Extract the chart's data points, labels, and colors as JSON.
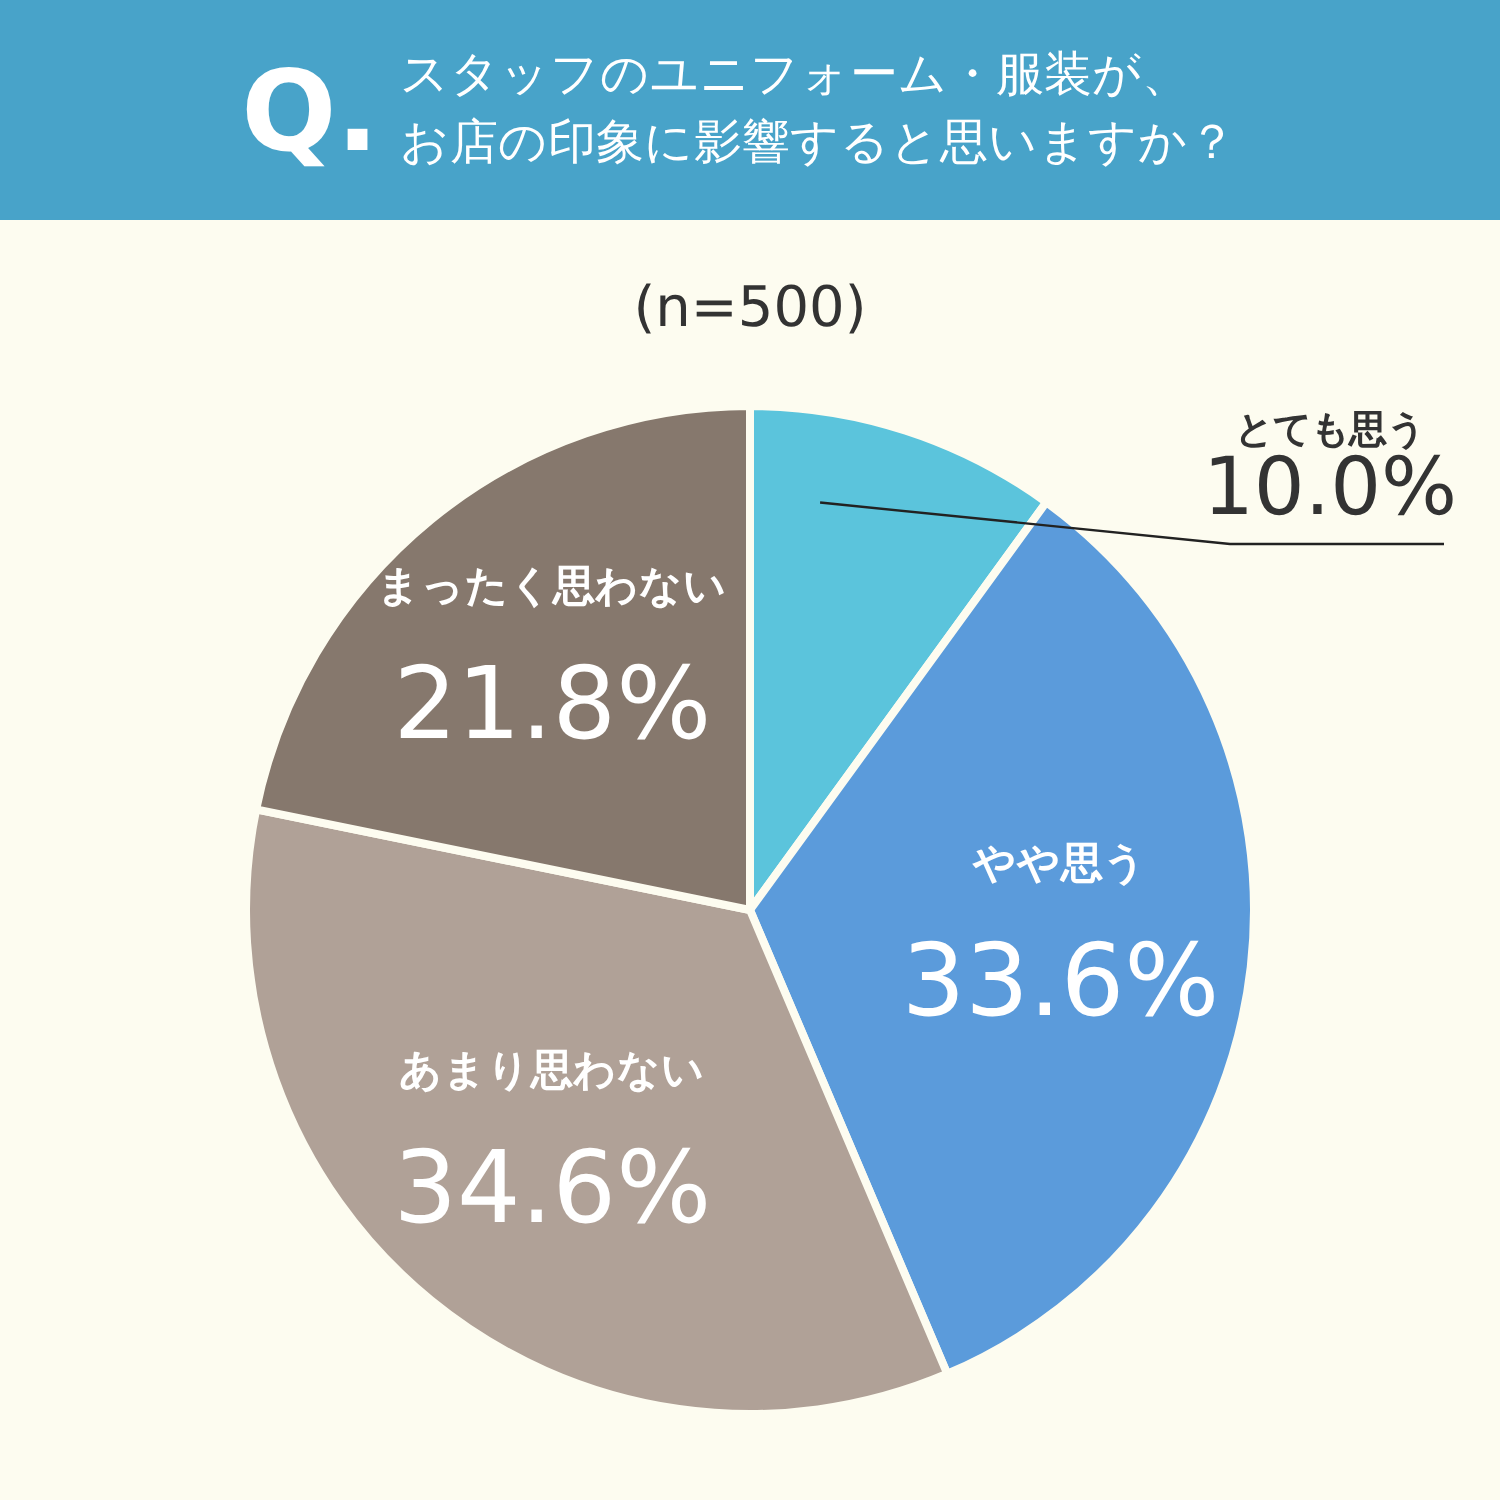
{
  "chart_data": {
    "type": "pie",
    "title": "スタッフのユニフォーム・服装が、お店の印象に影響すると思いますか？",
    "subtitle": "(n=500)",
    "annotations": [
      "Q."
    ],
    "categories": [
      "とても思う",
      "やや思う",
      "あまり思わない",
      "まったく思わない"
    ],
    "values": [
      10.0,
      33.6,
      34.6,
      21.8
    ],
    "colors": [
      "#5bc4dc",
      "#5b9bdb",
      "#b0a197",
      "#86786d"
    ],
    "value_labels": [
      "10.0%",
      "33.6%",
      "34.6%",
      "21.8%"
    ]
  }
}
